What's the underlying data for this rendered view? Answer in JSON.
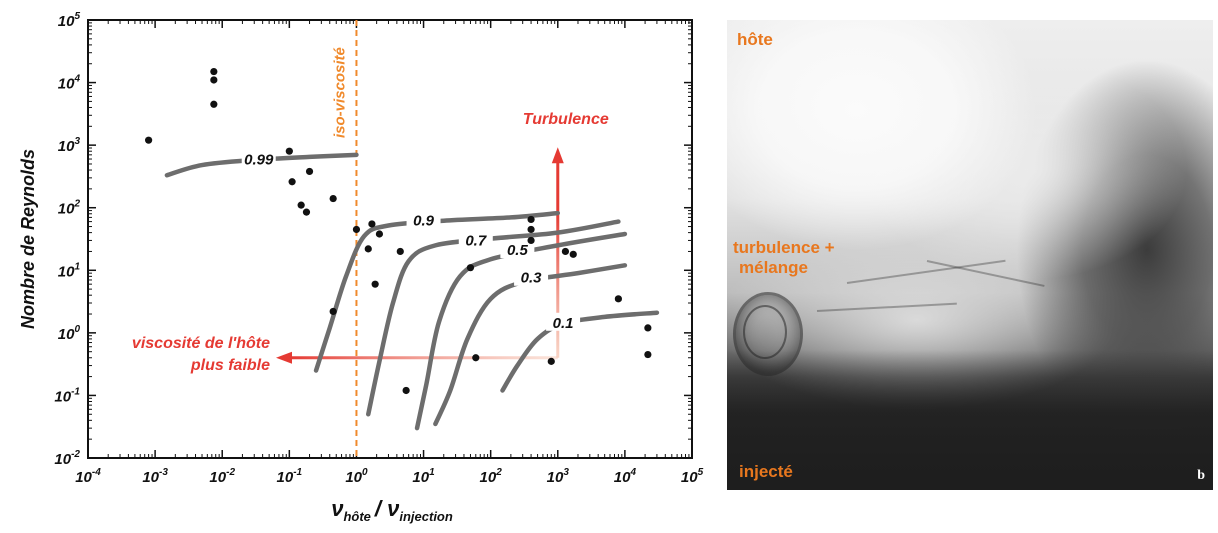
{
  "chart_data": {
    "type": "scatter",
    "xlabel_main": "ν",
    "xlabel_sub1": "hôte",
    "xlabel_sep": "/ ν",
    "xlabel_sub2": "injection",
    "ylabel": "Nombre de Reynolds",
    "x_scale": "log",
    "y_scale": "log",
    "xlim": [
      0.0001,
      100000
    ],
    "ylim": [
      0.01,
      100000
    ],
    "x_ticks": [
      {
        "base": "10",
        "exp": "-4"
      },
      {
        "base": "10",
        "exp": "-3"
      },
      {
        "base": "10",
        "exp": "-2"
      },
      {
        "base": "10",
        "exp": "-1"
      },
      {
        "base": "10",
        "exp": "0"
      },
      {
        "base": "10",
        "exp": "1"
      },
      {
        "base": "10",
        "exp": "2"
      },
      {
        "base": "10",
        "exp": "3"
      },
      {
        "base": "10",
        "exp": "4"
      },
      {
        "base": "10",
        "exp": "5"
      }
    ],
    "y_ticks": [
      {
        "base": "10",
        "exp": "-2"
      },
      {
        "base": "10",
        "exp": "-1"
      },
      {
        "base": "10",
        "exp": "0"
      },
      {
        "base": "10",
        "exp": "1"
      },
      {
        "base": "10",
        "exp": "2"
      },
      {
        "base": "10",
        "exp": "3"
      },
      {
        "base": "10",
        "exp": "4"
      },
      {
        "base": "10",
        "exp": "5"
      }
    ],
    "grid": false,
    "points": [
      [
        0.0008,
        1200
      ],
      [
        0.0075,
        15000
      ],
      [
        0.0075,
        11000
      ],
      [
        0.0075,
        4500
      ],
      [
        0.1,
        800
      ],
      [
        0.11,
        260
      ],
      [
        0.15,
        110
      ],
      [
        0.18,
        85
      ],
      [
        0.2,
        380
      ],
      [
        0.45,
        140
      ],
      [
        0.45,
        2.2
      ],
      [
        1.0,
        45
      ],
      [
        1.5,
        22
      ],
      [
        1.7,
        55
      ],
      [
        1.9,
        6
      ],
      [
        2.2,
        38
      ],
      [
        4.5,
        20
      ],
      [
        5.5,
        0.12
      ],
      [
        50,
        11
      ],
      [
        60,
        0.4
      ],
      [
        400,
        65
      ],
      [
        400,
        45
      ],
      [
        400,
        30
      ],
      [
        800,
        0.35
      ],
      [
        1300,
        20
      ],
      [
        1700,
        18
      ],
      [
        8000,
        3.5
      ],
      [
        22000,
        1.2
      ],
      [
        22000,
        0.45
      ]
    ],
    "curves": [
      {
        "label": "0.99",
        "points": [
          [
            0.0015,
            330
          ],
          [
            0.005,
            480
          ],
          [
            0.03,
            580
          ],
          [
            0.2,
            650
          ],
          [
            1.0,
            700
          ]
        ]
      },
      {
        "label": "0.9",
        "points": [
          [
            0.25,
            0.25
          ],
          [
            0.4,
            1.2
          ],
          [
            0.7,
            8
          ],
          [
            1.3,
            35
          ],
          [
            3,
            52
          ],
          [
            20,
            62
          ],
          [
            200,
            70
          ],
          [
            1000,
            82
          ]
        ]
      },
      {
        "label": "0.7",
        "points": [
          [
            1.5,
            0.05
          ],
          [
            2.2,
            0.35
          ],
          [
            3.5,
            3
          ],
          [
            6,
            14
          ],
          [
            15,
            25
          ],
          [
            100,
            32
          ],
          [
            1000,
            40
          ],
          [
            8000,
            60
          ]
        ]
      },
      {
        "label": "0.5",
        "points": [
          [
            8,
            0.03
          ],
          [
            11,
            0.15
          ],
          [
            17,
            1.5
          ],
          [
            35,
            8
          ],
          [
            100,
            15
          ],
          [
            1000,
            25
          ],
          [
            10000,
            38
          ]
        ]
      },
      {
        "label": "0.3",
        "points": [
          [
            15,
            0.035
          ],
          [
            25,
            0.12
          ],
          [
            45,
            0.8
          ],
          [
            100,
            3.5
          ],
          [
            300,
            6.5
          ],
          [
            2000,
            9
          ],
          [
            10000,
            12
          ]
        ]
      },
      {
        "label": "0.1",
        "points": [
          [
            150,
            0.12
          ],
          [
            250,
            0.3
          ],
          [
            500,
            0.8
          ],
          [
            1200,
            1.4
          ],
          [
            5000,
            1.8
          ],
          [
            30000,
            2.1
          ]
        ]
      }
    ],
    "iso_viscosity_x": 1.0,
    "annotations": {
      "iso_viscosite": "iso-viscosité",
      "turbulence": "Turbulence",
      "viscosite_line1": "viscosité de l'hôte",
      "viscosite_line2": "plus faible"
    },
    "colors": {
      "curve": "#6d6d6d",
      "dot": "#111111",
      "accent_red": "#e53a33",
      "accent_orange": "#f08a2c"
    }
  },
  "photo": {
    "label_top": "hôte",
    "label_mid_1": "turbulence +",
    "label_mid_2": "mélange",
    "label_bottom": "injecté",
    "panel_letter": "b",
    "label_color": "#e8771e"
  }
}
